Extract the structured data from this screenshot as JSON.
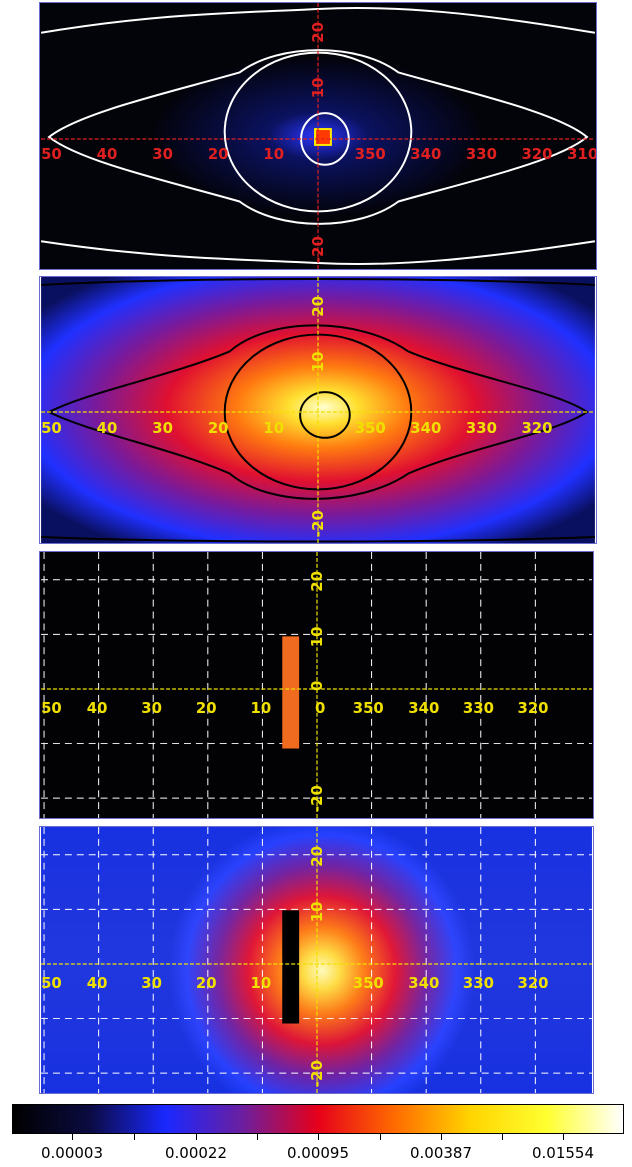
{
  "axis_labels": {
    "lon_top": [
      "50",
      "40",
      "30",
      "20",
      "10",
      "350",
      "340",
      "330",
      "320",
      "310"
    ],
    "lon_row": [
      "50",
      "40",
      "30",
      "20",
      "10",
      "350",
      "340",
      "330",
      "320"
    ],
    "lon_zero_row": [
      "50",
      "40",
      "30",
      "20",
      "10",
      "0",
      "350",
      "340",
      "330",
      "320"
    ],
    "lat": [
      "20",
      "10",
      "-20"
    ],
    "lat_zero": [
      "20",
      "10",
      "0",
      "-20"
    ]
  },
  "colors": {
    "axis_red": "#e02020",
    "axis_yellow": "#f0e000",
    "contour_white": "#ffffff",
    "contour_black": "#000000",
    "grid_dashed": "#ffffff"
  },
  "colorbar": {
    "labels": [
      "0.00003",
      "0.00022",
      "0.00095",
      "0.00387",
      "0.01554"
    ],
    "gradient_stops": [
      "#000000",
      "#0b0b40",
      "#1a28ff",
      "#6a1fa0",
      "#e6001a",
      "#ff6a00",
      "#ffd400",
      "#ffff30",
      "#ffffff"
    ]
  }
}
